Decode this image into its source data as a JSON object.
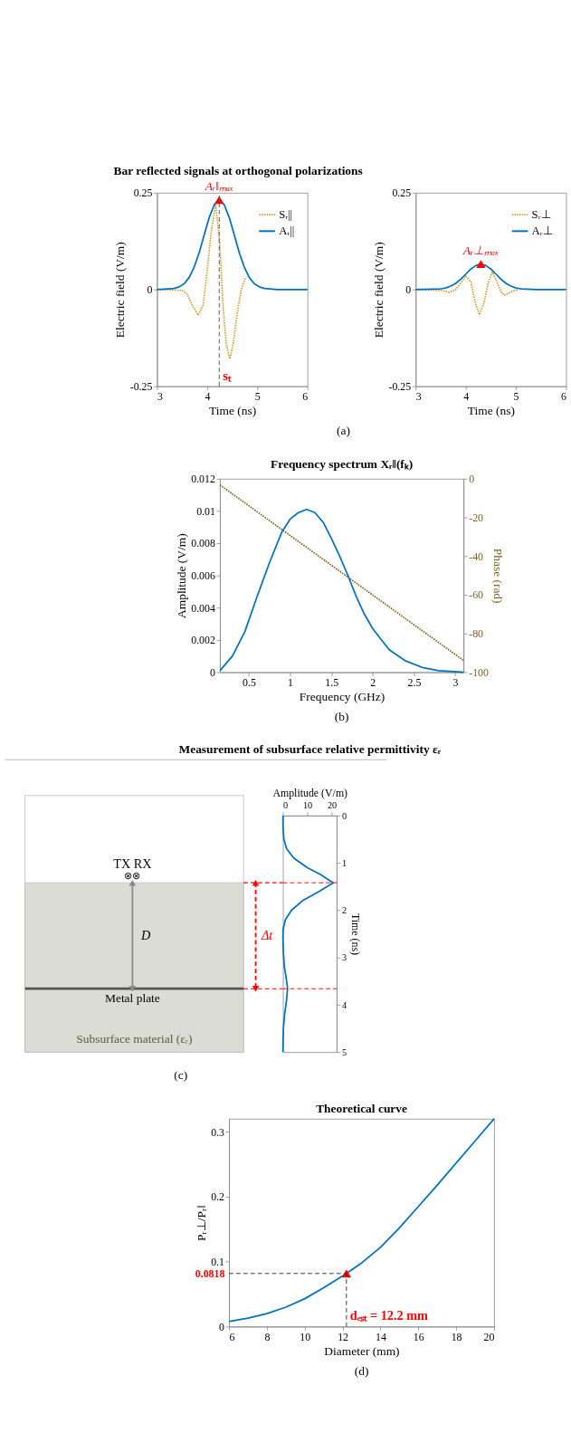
{
  "chart_data": [
    {
      "type": "line",
      "title": "Bar reflected signals at orthogonal polarizations",
      "xlabel": "Time (ns)",
      "ylabel": "Electric field (V/m)",
      "xlim": [
        3,
        6
      ],
      "xticks": [
        3,
        4,
        5,
        6
      ],
      "ylim": [
        -0.25,
        0.25
      ],
      "yticks": [
        -0.25,
        0,
        0.25
      ],
      "legend": "top right",
      "series": [
        {
          "name": "Sᵣ||",
          "color": "#d4a033",
          "line_style": "dotted",
          "x": [
            3,
            3.5,
            3.6,
            3.7,
            3.82,
            3.92,
            4.0,
            4.08,
            4.17,
            4.25,
            4.32,
            4.38,
            4.45,
            4.52,
            4.6,
            4.68,
            4.76
          ],
          "values": [
            0,
            -0.002,
            -0.012,
            -0.04,
            -0.066,
            -0.04,
            0.05,
            0.15,
            0.22,
            0.12,
            -0.05,
            -0.14,
            -0.179,
            -0.14,
            -0.06,
            0.0,
            0.03
          ]
        },
        {
          "name": "Aᵣ||",
          "color": "#0072bd",
          "x": [
            3,
            3.34,
            3.44,
            3.54,
            3.64,
            3.74,
            3.84,
            3.94,
            4.04,
            4.14,
            4.24,
            4.34,
            4.44,
            4.54,
            4.64,
            4.74,
            4.84,
            4.94,
            5.04,
            5.14,
            5.4,
            6
          ],
          "values": [
            0,
            0.003,
            0.007,
            0.015,
            0.031,
            0.058,
            0.095,
            0.141,
            0.186,
            0.219,
            0.232,
            0.219,
            0.186,
            0.141,
            0.095,
            0.058,
            0.031,
            0.015,
            0.007,
            0.003,
            0,
            0
          ]
        },
        {
          "type": "scatter",
          "marker": "triangle",
          "color": "#ff0000",
          "x": [
            4.24
          ],
          "values": [
            0.232
          ]
        }
      ],
      "ref_lines": [
        {
          "axis": "x",
          "value": 4.24,
          "label": "sₜ",
          "color": "#555555",
          "line_style": "dashed"
        }
      ],
      "annotations": [
        {
          "text": "Aᵣ‖ₘₐₓ",
          "x": 4.24,
          "y": 0.232
        },
        "(a)"
      ]
    },
    {
      "type": "line",
      "xlabel": "Time (ns)",
      "ylabel": "Electric field (V/m)",
      "xlim": [
        3,
        6
      ],
      "xticks": [
        3,
        4,
        5,
        6
      ],
      "ylim": [
        -0.25,
        0.25
      ],
      "yticks": [
        -0.25,
        0,
        0.25
      ],
      "legend": "top right",
      "series": [
        {
          "name": "Sᵣ⊥",
          "color": "#d4a033",
          "line_style": "dotted",
          "x": [
            3,
            3.5,
            3.67,
            3.8,
            3.92,
            4.0,
            4.1,
            4.18,
            4.27,
            4.36,
            4.45,
            4.53,
            4.62,
            4.7,
            4.77,
            4.9,
            5.05
          ],
          "values": [
            0,
            -0.002,
            -0.007,
            0.0,
            0.02,
            0.035,
            0.02,
            -0.03,
            -0.065,
            -0.035,
            0.02,
            0.045,
            0.02,
            -0.005,
            -0.015,
            -0.006,
            0.001
          ]
        },
        {
          "name": "Aᵣ⊥",
          "color": "#0072bd",
          "x": [
            3,
            3.5,
            3.6,
            3.7,
            3.8,
            3.9,
            4.0,
            4.1,
            4.2,
            4.3,
            4.4,
            4.5,
            4.6,
            4.7,
            4.8,
            4.9,
            5.0,
            5.1,
            5.4,
            6
          ],
          "values": [
            0,
            0.002,
            0.004,
            0.009,
            0.016,
            0.027,
            0.04,
            0.053,
            0.062,
            0.066,
            0.062,
            0.053,
            0.04,
            0.027,
            0.016,
            0.009,
            0.004,
            0.002,
            0,
            0
          ]
        },
        {
          "type": "scatter",
          "marker": "triangle",
          "color": "#ff0000",
          "x": [
            4.3
          ],
          "values": [
            0.066
          ]
        }
      ],
      "annotations": [
        {
          "text": "Aᵣ⊥ₘₐₓ",
          "x": 4.3,
          "y": 0.066
        }
      ]
    },
    {
      "type": "line",
      "title": "Frequency spectrum Xᵣ‖(fₖ)",
      "xlabel": "Frequency (GHz)",
      "ylabel": "Amplitude (V/m)",
      "y2label": "Phase (rad)",
      "xlim": [
        0.15,
        3.1
      ],
      "xticks": [
        0.5,
        1,
        1.5,
        2,
        2.5,
        3
      ],
      "ylim": [
        0,
        0.012
      ],
      "yticks": [
        0,
        0.002,
        0.004,
        0.006,
        0.008,
        0.01,
        0.012
      ],
      "y2lim": [
        -100,
        0
      ],
      "y2ticks": [
        -100,
        -80,
        -60,
        -40,
        -20,
        0
      ],
      "series": [
        {
          "color": "#0072bd",
          "x": [
            0.15,
            0.3,
            0.45,
            0.6,
            0.75,
            0.9,
            1.0,
            1.1,
            1.2,
            1.3,
            1.4,
            1.5,
            1.6,
            1.7,
            1.8,
            1.9,
            2.0,
            2.2,
            2.4,
            2.6,
            2.8,
            3.1
          ],
          "values": [
            0.0001,
            0.001,
            0.0025,
            0.0047,
            0.0068,
            0.0087,
            0.0095,
            0.0099,
            0.0101,
            0.0099,
            0.0093,
            0.0083,
            0.0072,
            0.006,
            0.0047,
            0.0036,
            0.0027,
            0.0014,
            0.0007,
            0.0003,
            0.0001,
            0.0
          ]
        },
        {
          "color": "#7e6424",
          "line_style": "dotted",
          "axis": "y2",
          "x": [
            0.15,
            3.1
          ],
          "values": [
            -3.2,
            -93.9
          ]
        }
      ],
      "annotations": [
        "(b)"
      ]
    },
    {
      "type": "line",
      "title": "Measurement of subsurface relative permittivity εᵣ",
      "xlabel": "Amplitude (V/m)",
      "xlim": [
        0,
        22
      ],
      "xticks": [
        0,
        10,
        20
      ],
      "ylabel": "Time (ns)",
      "ylim": [
        5,
        0
      ],
      "yticks": [
        0,
        1,
        2,
        3,
        4,
        5
      ],
      "series": [
        {
          "color": "#0072bd",
          "x": [
            0,
            0.1,
            0.4,
            1.5,
            4.5,
            10,
            15.5,
            20.6,
            15,
            8,
            3.5,
            1,
            0.1,
            0,
            0.2,
            0.6,
            1.4,
            1.9,
            1.5,
            0.7,
            0.2,
            0
          ],
          "values": [
            0,
            0.3,
            0.5,
            0.7,
            0.9,
            1.1,
            1.25,
            1.42,
            1.6,
            1.8,
            2.0,
            2.2,
            2.4,
            2.6,
            2.9,
            3.2,
            3.45,
            3.66,
            3.9,
            4.2,
            4.5,
            5
          ]
        }
      ],
      "ref_lines": [
        {
          "axis": "y",
          "value": 1.42,
          "color": "#ff0000",
          "line_style": "dashed"
        },
        {
          "axis": "y",
          "value": 3.66,
          "color": "#ff0000",
          "line_style": "dashed"
        }
      ],
      "annotations": [
        "TX RX",
        "⊗⊗",
        "D",
        "Metal plate",
        "Subsurface material (εᵣ)",
        "Δt",
        "(c)"
      ]
    },
    {
      "type": "line",
      "title": "Theoretical curve",
      "xlabel": "Diameter (mm)",
      "ylabel": "Pᵣ⊥/Pᵣ‖",
      "xlim": [
        6,
        20
      ],
      "xticks": [
        6,
        8,
        10,
        12,
        14,
        16,
        18,
        20
      ],
      "ylim": [
        0,
        0.32
      ],
      "yticks": [
        0,
        0.1,
        0.2,
        0.3
      ],
      "series": [
        {
          "color": "#0072bd",
          "x": [
            6,
            7,
            8,
            9,
            10,
            11,
            12,
            12.2,
            13,
            14,
            15,
            16,
            17,
            18,
            19,
            20
          ],
          "values": [
            0.008,
            0.013,
            0.02,
            0.03,
            0.043,
            0.06,
            0.078,
            0.0818,
            0.098,
            0.122,
            0.152,
            0.185,
            0.218,
            0.252,
            0.286,
            0.32
          ]
        },
        {
          "type": "scatter",
          "marker": "triangle",
          "color": "#ff0000",
          "x": [
            12.2
          ],
          "values": [
            0.0818
          ]
        }
      ],
      "ref_lines": [
        {
          "axis": "y",
          "value": 0.0818,
          "label": "0.0818",
          "color": "#333333",
          "line_style": "dashed"
        },
        {
          "axis": "x",
          "value": 12.2,
          "label": "dₑₛₜ = 12.2 mm",
          "color": "#333333",
          "line_style": "dashed"
        }
      ],
      "annotations": [
        "(d)"
      ]
    }
  ]
}
